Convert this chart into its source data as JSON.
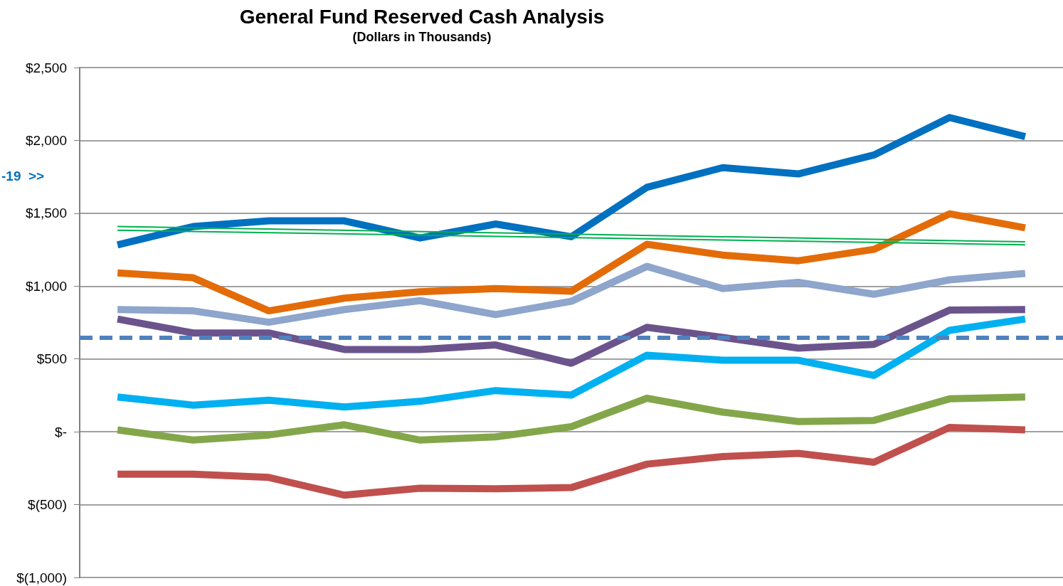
{
  "chart_data": {
    "type": "line",
    "title": "General Fund Reserved Cash Analysis",
    "subtitle": "(Dollars in Thousands)",
    "categories": [
      null,
      null,
      null,
      null,
      null,
      null,
      null,
      null,
      null,
      null,
      null,
      null,
      null
    ],
    "series": [
      {
        "color": "#0070c0",
        "values": [
          1283,
          1409,
          1448,
          1448,
          1330,
          1426,
          1339,
          1678,
          1813,
          1770,
          1900,
          2157,
          2026
        ]
      },
      {
        "color": "#e36c09",
        "values": [
          1091,
          1057,
          830,
          917,
          961,
          983,
          965,
          1287,
          1213,
          1174,
          1252,
          1496,
          1400
        ]
      },
      {
        "color": "#8ea5cc",
        "values": [
          839,
          830,
          752,
          839,
          900,
          804,
          896,
          1135,
          983,
          1026,
          944,
          1043,
          1087
        ]
      },
      {
        "color": "#6b548c",
        "values": [
          774,
          678,
          678,
          565,
          565,
          596,
          470,
          717,
          648,
          574,
          600,
          835,
          839
        ]
      },
      {
        "color": "#00b0f0",
        "values": [
          239,
          183,
          217,
          170,
          209,
          283,
          252,
          526,
          491,
          491,
          387,
          696,
          774
        ]
      },
      {
        "color": "#84a64a",
        "values": [
          13,
          -57,
          -22,
          48,
          -57,
          -35,
          35,
          230,
          135,
          70,
          78,
          226,
          239
        ]
      },
      {
        "color": "#c0504d",
        "values": [
          -291,
          -291,
          -313,
          -435,
          -387,
          -391,
          -383,
          -222,
          -170,
          -148,
          -209,
          30,
          13
        ]
      },
      {
        "color": "#00b050",
        "values": [
          1409,
          null,
          null,
          null,
          null,
          null,
          null,
          null,
          null,
          null,
          null,
          null,
          1304
        ]
      },
      {
        "color": "#00b050",
        "values": [
          1383,
          null,
          null,
          null,
          null,
          null,
          null,
          null,
          null,
          null,
          null,
          null,
          1283
        ]
      }
    ],
    "ref_lines": [
      {
        "axis": "y",
        "value": 648,
        "color": "#4f81bd",
        "line_style": "dashed"
      }
    ],
    "annotations": [
      "-19  >>"
    ],
    "ylim": [
      -1000,
      2500
    ],
    "yticks": [
      {
        "value": -1000,
        "label": "$(1,000)"
      },
      {
        "value": -500,
        "label": "$(500)"
      },
      {
        "value": 0,
        "label": "$-"
      },
      {
        "value": 500,
        "label": "$500"
      },
      {
        "value": 1000,
        "label": "$1,000"
      },
      {
        "value": 1500,
        "label": "$1,500"
      },
      {
        "value": 2000,
        "label": "$2,000"
      },
      {
        "value": 2500,
        "label": "$2,500"
      }
    ],
    "grid": "y",
    "marker": "none",
    "tick_labels": "y"
  }
}
